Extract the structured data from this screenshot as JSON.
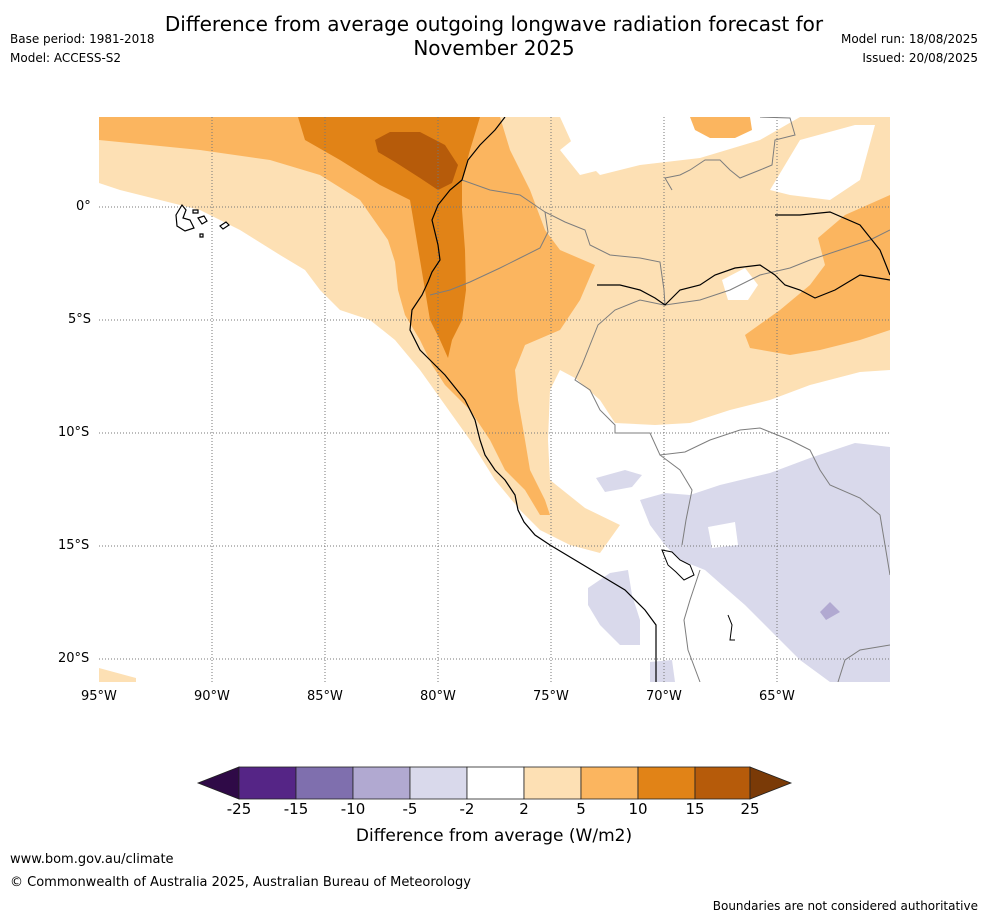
{
  "header": {
    "title_line1": "Difference from average outgoing longwave radiation forecast for",
    "title_line2": "November 2025",
    "base_period": "Base period: 1981-2018",
    "model": "Model: ACCESS-S2",
    "model_run": "Model run: 18/08/2025",
    "issued": "Issued: 20/08/2025"
  },
  "map": {
    "lat_labels": [
      "0°",
      "5°S",
      "10°S",
      "15°S",
      "20°S"
    ],
    "lon_labels": [
      "95°W",
      "90°W",
      "85°W",
      "80°W",
      "75°W",
      "70°W",
      "65°W"
    ],
    "colors": {
      "c_25m": "#2f0a47",
      "c_20m": "#552586",
      "c_15m": "#7f6fae",
      "c_10m": "#b1a9d1",
      "c_5m": "#d9d9eb",
      "c_0": "#ffffff",
      "c_5": "#fde0b4",
      "c_10": "#fbb55f",
      "c_15": "#e18317",
      "c_20": "#b65b0a",
      "c_25": "#7a3a07"
    }
  },
  "colorbar": {
    "ticks": [
      "-25",
      "-15",
      "-10",
      "-5",
      "-2",
      "2",
      "5",
      "10",
      "15",
      "25"
    ],
    "label": "Difference from average (W/m2)"
  },
  "footer": {
    "website": "www.bom.gov.au/climate",
    "copyright": "© Commonwealth of Australia 2025, Australian Bureau of Meteorology",
    "disclaimer": "Boundaries are not considered authoritative"
  }
}
